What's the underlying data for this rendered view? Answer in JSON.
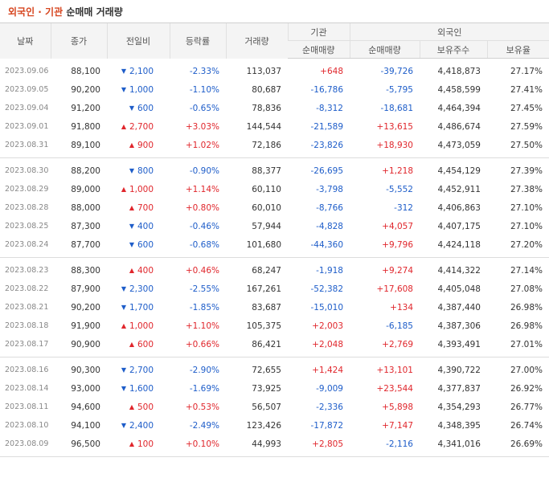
{
  "title": {
    "accent": "외국인 · 기관",
    "plain": "순매매 거래량"
  },
  "header": {
    "date": "날짜",
    "close": "종가",
    "change": "전일비",
    "rate": "등락률",
    "volume": "거래량",
    "inst": "기관",
    "foreign": "외국인",
    "inst_net": "순매매량",
    "foreign_net": "순매매량",
    "foreign_shares": "보유주수",
    "foreign_ratio": "보유율"
  },
  "colors": {
    "up": "#e0262c",
    "down": "#1e5dc9"
  },
  "groups": [
    [
      {
        "date": "2023.09.06",
        "close": "88,100",
        "dir": "down",
        "chg": "2,100",
        "rate": "-2.33%",
        "vol": "113,037",
        "inst": "+648",
        "forn": "-39,726",
        "shares": "4,418,873",
        "ratio": "27.17%"
      },
      {
        "date": "2023.09.05",
        "close": "90,200",
        "dir": "down",
        "chg": "1,000",
        "rate": "-1.10%",
        "vol": "80,687",
        "inst": "-16,786",
        "forn": "-5,795",
        "shares": "4,458,599",
        "ratio": "27.41%"
      },
      {
        "date": "2023.09.04",
        "close": "91,200",
        "dir": "down",
        "chg": "600",
        "rate": "-0.65%",
        "vol": "78,836",
        "inst": "-8,312",
        "forn": "-18,681",
        "shares": "4,464,394",
        "ratio": "27.45%"
      },
      {
        "date": "2023.09.01",
        "close": "91,800",
        "dir": "up",
        "chg": "2,700",
        "rate": "+3.03%",
        "vol": "144,544",
        "inst": "-21,589",
        "forn": "+13,615",
        "shares": "4,486,674",
        "ratio": "27.59%"
      },
      {
        "date": "2023.08.31",
        "close": "89,100",
        "dir": "up",
        "chg": "900",
        "rate": "+1.02%",
        "vol": "72,186",
        "inst": "-23,826",
        "forn": "+18,930",
        "shares": "4,473,059",
        "ratio": "27.50%"
      }
    ],
    [
      {
        "date": "2023.08.30",
        "close": "88,200",
        "dir": "down",
        "chg": "800",
        "rate": "-0.90%",
        "vol": "88,377",
        "inst": "-26,695",
        "forn": "+1,218",
        "shares": "4,454,129",
        "ratio": "27.39%"
      },
      {
        "date": "2023.08.29",
        "close": "89,000",
        "dir": "up",
        "chg": "1,000",
        "rate": "+1.14%",
        "vol": "60,110",
        "inst": "-3,798",
        "forn": "-5,552",
        "shares": "4,452,911",
        "ratio": "27.38%"
      },
      {
        "date": "2023.08.28",
        "close": "88,000",
        "dir": "up",
        "chg": "700",
        "rate": "+0.80%",
        "vol": "60,010",
        "inst": "-8,766",
        "forn": "-312",
        "shares": "4,406,863",
        "ratio": "27.10%"
      },
      {
        "date": "2023.08.25",
        "close": "87,300",
        "dir": "down",
        "chg": "400",
        "rate": "-0.46%",
        "vol": "57,944",
        "inst": "-4,828",
        "forn": "+4,057",
        "shares": "4,407,175",
        "ratio": "27.10%"
      },
      {
        "date": "2023.08.24",
        "close": "87,700",
        "dir": "down",
        "chg": "600",
        "rate": "-0.68%",
        "vol": "101,680",
        "inst": "-44,360",
        "forn": "+9,796",
        "shares": "4,424,118",
        "ratio": "27.20%"
      }
    ],
    [
      {
        "date": "2023.08.23",
        "close": "88,300",
        "dir": "up",
        "chg": "400",
        "rate": "+0.46%",
        "vol": "68,247",
        "inst": "-1,918",
        "forn": "+9,274",
        "shares": "4,414,322",
        "ratio": "27.14%"
      },
      {
        "date": "2023.08.22",
        "close": "87,900",
        "dir": "down",
        "chg": "2,300",
        "rate": "-2.55%",
        "vol": "167,261",
        "inst": "-52,382",
        "forn": "+17,608",
        "shares": "4,405,048",
        "ratio": "27.08%"
      },
      {
        "date": "2023.08.21",
        "close": "90,200",
        "dir": "down",
        "chg": "1,700",
        "rate": "-1.85%",
        "vol": "83,687",
        "inst": "-15,010",
        "forn": "+134",
        "shares": "4,387,440",
        "ratio": "26.98%"
      },
      {
        "date": "2023.08.18",
        "close": "91,900",
        "dir": "up",
        "chg": "1,000",
        "rate": "+1.10%",
        "vol": "105,375",
        "inst": "+2,003",
        "forn": "-6,185",
        "shares": "4,387,306",
        "ratio": "26.98%"
      },
      {
        "date": "2023.08.17",
        "close": "90,900",
        "dir": "up",
        "chg": "600",
        "rate": "+0.66%",
        "vol": "86,421",
        "inst": "+2,048",
        "forn": "+2,769",
        "shares": "4,393,491",
        "ratio": "27.01%"
      }
    ],
    [
      {
        "date": "2023.08.16",
        "close": "90,300",
        "dir": "down",
        "chg": "2,700",
        "rate": "-2.90%",
        "vol": "72,655",
        "inst": "+1,424",
        "forn": "+13,101",
        "shares": "4,390,722",
        "ratio": "27.00%"
      },
      {
        "date": "2023.08.14",
        "close": "93,000",
        "dir": "down",
        "chg": "1,600",
        "rate": "-1.69%",
        "vol": "73,925",
        "inst": "-9,009",
        "forn": "+23,544",
        "shares": "4,377,837",
        "ratio": "26.92%"
      },
      {
        "date": "2023.08.11",
        "close": "94,600",
        "dir": "up",
        "chg": "500",
        "rate": "+0.53%",
        "vol": "56,507",
        "inst": "-2,336",
        "forn": "+5,898",
        "shares": "4,354,293",
        "ratio": "26.77%"
      },
      {
        "date": "2023.08.10",
        "close": "94,100",
        "dir": "down",
        "chg": "2,400",
        "rate": "-2.49%",
        "vol": "123,426",
        "inst": "-17,872",
        "forn": "+7,147",
        "shares": "4,348,395",
        "ratio": "26.74%"
      },
      {
        "date": "2023.08.09",
        "close": "96,500",
        "dir": "up",
        "chg": "100",
        "rate": "+0.10%",
        "vol": "44,993",
        "inst": "+2,805",
        "forn": "-2,116",
        "shares": "4,341,016",
        "ratio": "26.69%"
      }
    ]
  ]
}
